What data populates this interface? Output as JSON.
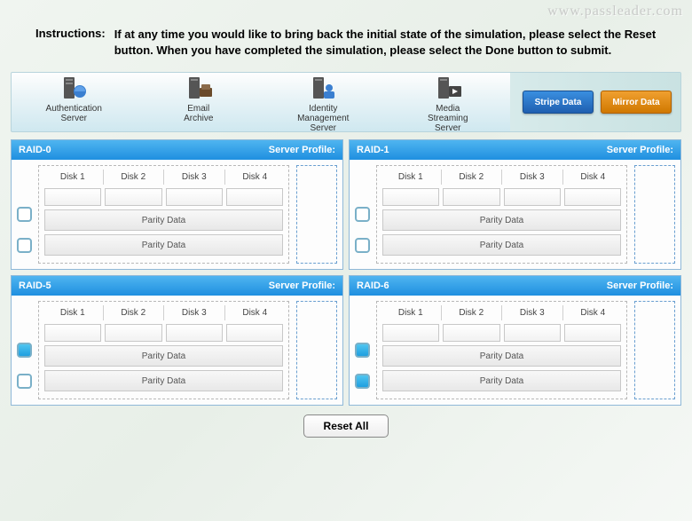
{
  "watermark": "www.passleader.com",
  "instructions": {
    "label": "Instructions:",
    "text": "If at any time you would like to bring back the initial state of the simulation, please select the Reset button. When you have completed the simulation, please select the Done button to submit."
  },
  "toolbar": {
    "servers": [
      {
        "line1": "Authentication",
        "line2": "Server"
      },
      {
        "line1": "Email",
        "line2": "Archive"
      },
      {
        "line1": "Identity",
        "line2": "Management",
        "line3": "Server"
      },
      {
        "line1": "Media",
        "line2": "Streaming",
        "line3": "Server"
      }
    ],
    "stripe_label": "Stripe Data",
    "mirror_label": "Mirror Data",
    "colors": {
      "blue": "#1f5fb0",
      "orange": "#d07800"
    }
  },
  "panels": [
    {
      "title": "RAID-0",
      "profile_label": "Server Profile:",
      "disks": [
        "Disk 1",
        "Disk 2",
        "Disk 3",
        "Disk 4"
      ],
      "parity1": "Parity Data",
      "parity2": "Parity Data",
      "check1": false,
      "check2": false
    },
    {
      "title": "RAID-1",
      "profile_label": "Server Profile:",
      "disks": [
        "Disk 1",
        "Disk 2",
        "Disk 3",
        "Disk 4"
      ],
      "parity1": "Parity Data",
      "parity2": "Parity Data",
      "check1": false,
      "check2": false
    },
    {
      "title": "RAID-5",
      "profile_label": "Server Profile:",
      "disks": [
        "Disk 1",
        "Disk 2",
        "Disk 3",
        "Disk 4"
      ],
      "parity1": "Parity Data",
      "parity2": "Parity Data",
      "check1": true,
      "check2": false
    },
    {
      "title": "RAID-6",
      "profile_label": "Server Profile:",
      "disks": [
        "Disk 1",
        "Disk 2",
        "Disk 3",
        "Disk 4"
      ],
      "parity1": "Parity Data",
      "parity2": "Parity Data",
      "check1": true,
      "check2": true
    }
  ],
  "reset_label": "Reset All",
  "colors": {
    "header_grad_top": "#4fb5f0",
    "header_grad_bot": "#1f8fe0",
    "panel_border": "#8fb8d8",
    "dashed_border": "#b8b8b8",
    "profile_border": "#6a9fd0",
    "checkbox_border": "#7ab0c8",
    "checkbox_on": "#1f9fe0"
  }
}
